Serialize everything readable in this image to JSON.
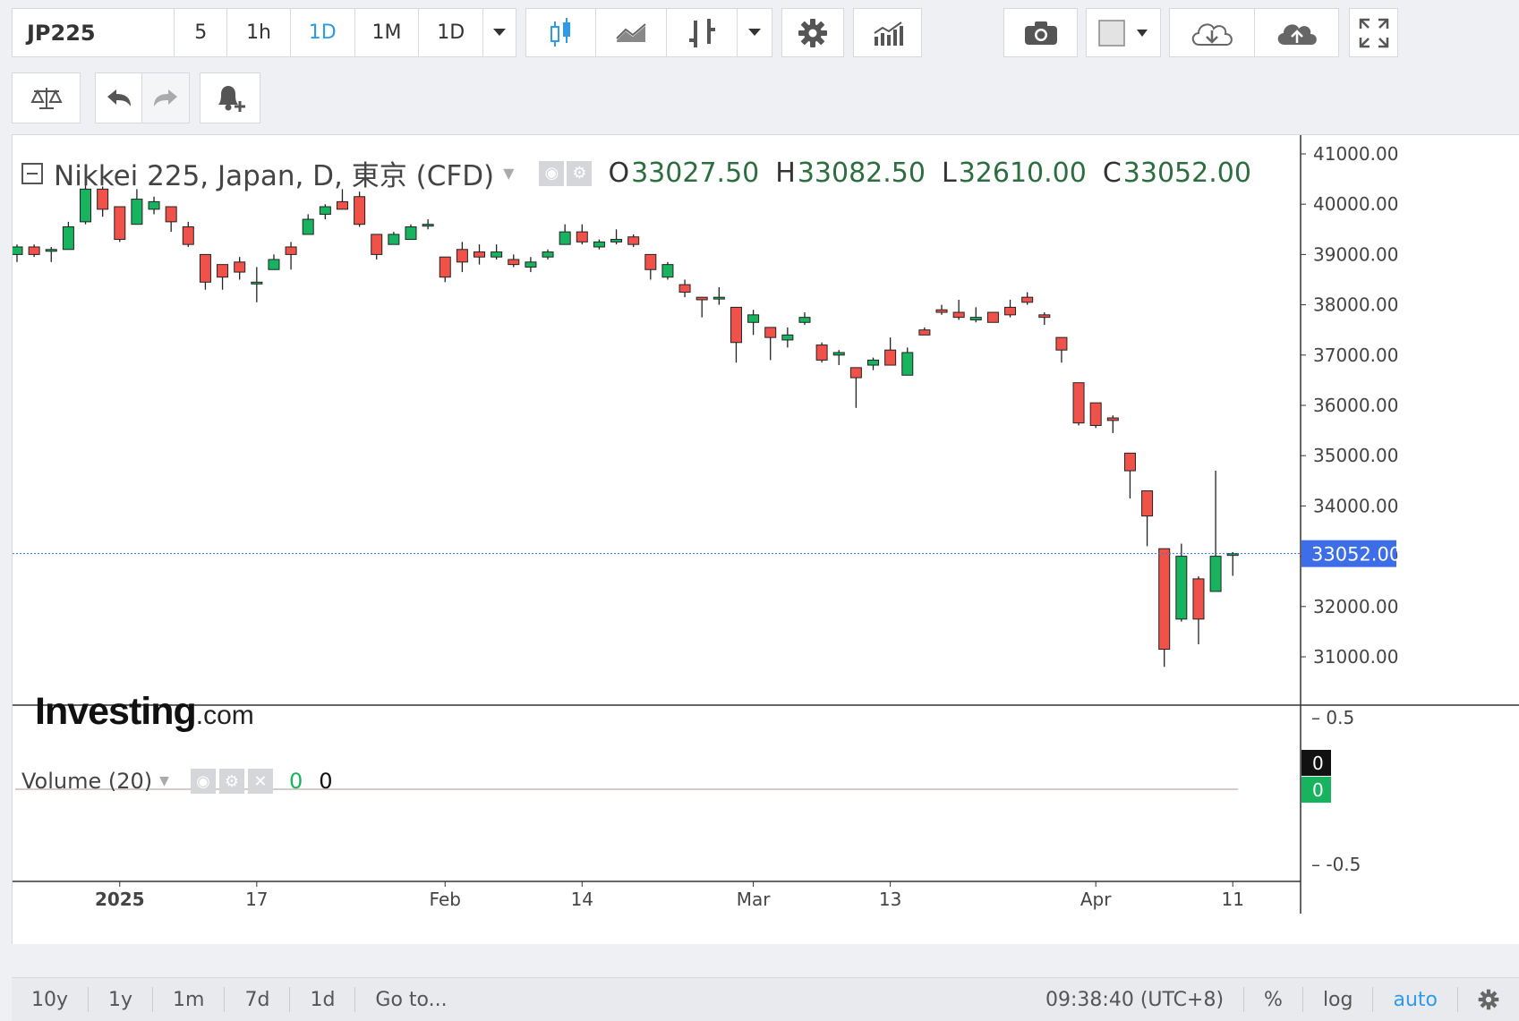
{
  "toolbar": {
    "symbol": "JP225",
    "intervals": [
      "5",
      "1h",
      "1D",
      "1M",
      "1D"
    ],
    "active_interval_index": 2,
    "icons": [
      "candles-icon",
      "line-chart-icon",
      "indicators-icon",
      "settings-icon",
      "bars-icon",
      "camera-icon",
      "color-box-icon",
      "download-cloud-icon",
      "upload-cloud-icon",
      "fullscreen-icon"
    ]
  },
  "toolbar2": {
    "icons": [
      "compare-icon",
      "undo-icon",
      "redo-icon",
      "add-alert-icon"
    ]
  },
  "legend": {
    "title": "Nikkei 225, Japan, D, 東京 (CFD)",
    "open_label": "O",
    "open": "33027.50",
    "high_label": "H",
    "high": "33082.50",
    "low_label": "L",
    "low": "32610.00",
    "close_label": "C",
    "close": "33052.00"
  },
  "volume": {
    "label": "Volume (20)",
    "value1": "0",
    "value2": "0",
    "axis_labels": [
      "0.5",
      "-0.5"
    ],
    "tags": [
      "0",
      "0"
    ]
  },
  "logo": {
    "main": "Investing",
    "domain": ".com"
  },
  "bottom_bar": {
    "ranges": [
      "10y",
      "1y",
      "1m",
      "7d",
      "1d"
    ],
    "goto": "Go to...",
    "time": "09:38:40 (UTC+8)",
    "percent": "%",
    "log": "log",
    "auto": "auto"
  },
  "colors": {
    "up": "#18b35f",
    "down": "#f0524a",
    "accent": "#2f9be8",
    "last_price_bg": "#3d6ee8"
  },
  "chart_data": {
    "type": "candlestick",
    "title": "Nikkei 225, Japan, D, 東京 (CFD)",
    "ylim": [
      30200,
      41500
    ],
    "y_ticks": [
      "41000.00",
      "40000.00",
      "39000.00",
      "38000.00",
      "37000.00",
      "36000.00",
      "35000.00",
      "34000.00",
      "33000.00",
      "32000.00",
      "31000.00"
    ],
    "y_tick_values": [
      41000,
      40000,
      39000,
      38000,
      37000,
      36000,
      35000,
      34000,
      33000,
      32000,
      31000
    ],
    "last_price": 33052,
    "last_price_label": "33052.00",
    "x_tick_labels": [
      "2025",
      "17",
      "Feb",
      "14",
      "Mar",
      "13",
      "Apr",
      "11"
    ],
    "x_tick_index": [
      6,
      14,
      25,
      33,
      43,
      51,
      63,
      71
    ],
    "candles": [
      {
        "o": 39000,
        "h": 39200,
        "l": 38850,
        "c": 39150
      },
      {
        "o": 39150,
        "h": 39200,
        "l": 38950,
        "c": 39000
      },
      {
        "o": 39100,
        "h": 39150,
        "l": 38850,
        "c": 39100
      },
      {
        "o": 39100,
        "h": 39650,
        "l": 39100,
        "c": 39550
      },
      {
        "o": 39650,
        "h": 40400,
        "l": 39600,
        "c": 40300
      },
      {
        "o": 40300,
        "h": 40350,
        "l": 39750,
        "c": 39900
      },
      {
        "o": 39950,
        "h": 39950,
        "l": 39250,
        "c": 39300
      },
      {
        "o": 39600,
        "h": 40300,
        "l": 39600,
        "c": 40100
      },
      {
        "o": 39900,
        "h": 40150,
        "l": 39800,
        "c": 40050
      },
      {
        "o": 39950,
        "h": 39950,
        "l": 39450,
        "c": 39650
      },
      {
        "o": 39550,
        "h": 39650,
        "l": 39150,
        "c": 39200
      },
      {
        "o": 39000,
        "h": 39000,
        "l": 38300,
        "c": 38450
      },
      {
        "o": 38800,
        "h": 38800,
        "l": 38300,
        "c": 38550
      },
      {
        "o": 38850,
        "h": 38950,
        "l": 38500,
        "c": 38650
      },
      {
        "o": 38450,
        "h": 38750,
        "l": 38050,
        "c": 38450
      },
      {
        "o": 38700,
        "h": 39000,
        "l": 38700,
        "c": 38900
      },
      {
        "o": 39150,
        "h": 39250,
        "l": 38700,
        "c": 39000
      },
      {
        "o": 39400,
        "h": 39800,
        "l": 39400,
        "c": 39700
      },
      {
        "o": 39800,
        "h": 40000,
        "l": 39700,
        "c": 39950
      },
      {
        "o": 40050,
        "h": 40300,
        "l": 39900,
        "c": 39900
      },
      {
        "o": 40150,
        "h": 40250,
        "l": 39550,
        "c": 39600
      },
      {
        "o": 39400,
        "h": 39400,
        "l": 38900,
        "c": 39000
      },
      {
        "o": 39200,
        "h": 39450,
        "l": 39200,
        "c": 39400
      },
      {
        "o": 39300,
        "h": 39600,
        "l": 39300,
        "c": 39550
      },
      {
        "o": 39600,
        "h": 39700,
        "l": 39500,
        "c": 39600
      },
      {
        "o": 38950,
        "h": 38950,
        "l": 38450,
        "c": 38550
      },
      {
        "o": 39100,
        "h": 39250,
        "l": 38650,
        "c": 38850
      },
      {
        "o": 39050,
        "h": 39200,
        "l": 38800,
        "c": 38950
      },
      {
        "o": 38950,
        "h": 39200,
        "l": 38900,
        "c": 39050
      },
      {
        "o": 38900,
        "h": 39000,
        "l": 38750,
        "c": 38800
      },
      {
        "o": 38750,
        "h": 38950,
        "l": 38650,
        "c": 38850
      },
      {
        "o": 38950,
        "h": 39100,
        "l": 38900,
        "c": 39050
      },
      {
        "o": 39200,
        "h": 39600,
        "l": 39200,
        "c": 39450
      },
      {
        "o": 39450,
        "h": 39600,
        "l": 39200,
        "c": 39250
      },
      {
        "o": 39150,
        "h": 39300,
        "l": 39100,
        "c": 39250
      },
      {
        "o": 39250,
        "h": 39500,
        "l": 39200,
        "c": 39300
      },
      {
        "o": 39350,
        "h": 39400,
        "l": 39150,
        "c": 39200
      },
      {
        "o": 39000,
        "h": 39000,
        "l": 38500,
        "c": 38700
      },
      {
        "o": 38550,
        "h": 38850,
        "l": 38500,
        "c": 38800
      },
      {
        "o": 38400,
        "h": 38500,
        "l": 38150,
        "c": 38250
      },
      {
        "o": 38150,
        "h": 38150,
        "l": 37750,
        "c": 38100
      },
      {
        "o": 38150,
        "h": 38350,
        "l": 38000,
        "c": 38150
      },
      {
        "o": 37950,
        "h": 37950,
        "l": 36850,
        "c": 37250
      },
      {
        "o": 37650,
        "h": 37900,
        "l": 37400,
        "c": 37800
      },
      {
        "o": 37550,
        "h": 37550,
        "l": 36900,
        "c": 37350
      },
      {
        "o": 37300,
        "h": 37550,
        "l": 37150,
        "c": 37400
      },
      {
        "o": 37650,
        "h": 37850,
        "l": 37600,
        "c": 37750
      },
      {
        "o": 37200,
        "h": 37250,
        "l": 36850,
        "c": 36900
      },
      {
        "o": 37000,
        "h": 37100,
        "l": 36800,
        "c": 37050
      },
      {
        "o": 36750,
        "h": 36750,
        "l": 35950,
        "c": 36550
      },
      {
        "o": 36800,
        "h": 36950,
        "l": 36700,
        "c": 36900
      },
      {
        "o": 37100,
        "h": 37350,
        "l": 36800,
        "c": 36800
      },
      {
        "o": 36600,
        "h": 37150,
        "l": 36600,
        "c": 37050
      },
      {
        "o": 37500,
        "h": 37550,
        "l": 37400,
        "c": 37400
      },
      {
        "o": 37900,
        "h": 38000,
        "l": 37800,
        "c": 37850
      },
      {
        "o": 37850,
        "h": 38100,
        "l": 37700,
        "c": 37750
      },
      {
        "o": 37700,
        "h": 37950,
        "l": 37650,
        "c": 37750
      },
      {
        "o": 37850,
        "h": 37850,
        "l": 37650,
        "c": 37650
      },
      {
        "o": 37950,
        "h": 38100,
        "l": 37750,
        "c": 37800
      },
      {
        "o": 38150,
        "h": 38250,
        "l": 38000,
        "c": 38050
      },
      {
        "o": 37800,
        "h": 37850,
        "l": 37600,
        "c": 37750
      },
      {
        "o": 37350,
        "h": 37350,
        "l": 36850,
        "c": 37100
      },
      {
        "o": 36450,
        "h": 36450,
        "l": 35600,
        "c": 35650
      },
      {
        "o": 36050,
        "h": 36050,
        "l": 35550,
        "c": 35600
      },
      {
        "o": 35750,
        "h": 35800,
        "l": 35450,
        "c": 35700
      },
      {
        "o": 35050,
        "h": 35050,
        "l": 34150,
        "c": 34700
      },
      {
        "o": 34300,
        "h": 34300,
        "l": 33200,
        "c": 33800
      },
      {
        "o": 33150,
        "h": 33150,
        "l": 30800,
        "c": 31150
      },
      {
        "o": 31750,
        "h": 33250,
        "l": 31700,
        "c": 33000
      },
      {
        "o": 32550,
        "h": 32600,
        "l": 31250,
        "c": 31750
      },
      {
        "o": 32300,
        "h": 34700,
        "l": 32300,
        "c": 33000
      },
      {
        "o": 33027.5,
        "h": 33082.5,
        "l": 32610,
        "c": 33052
      }
    ]
  }
}
